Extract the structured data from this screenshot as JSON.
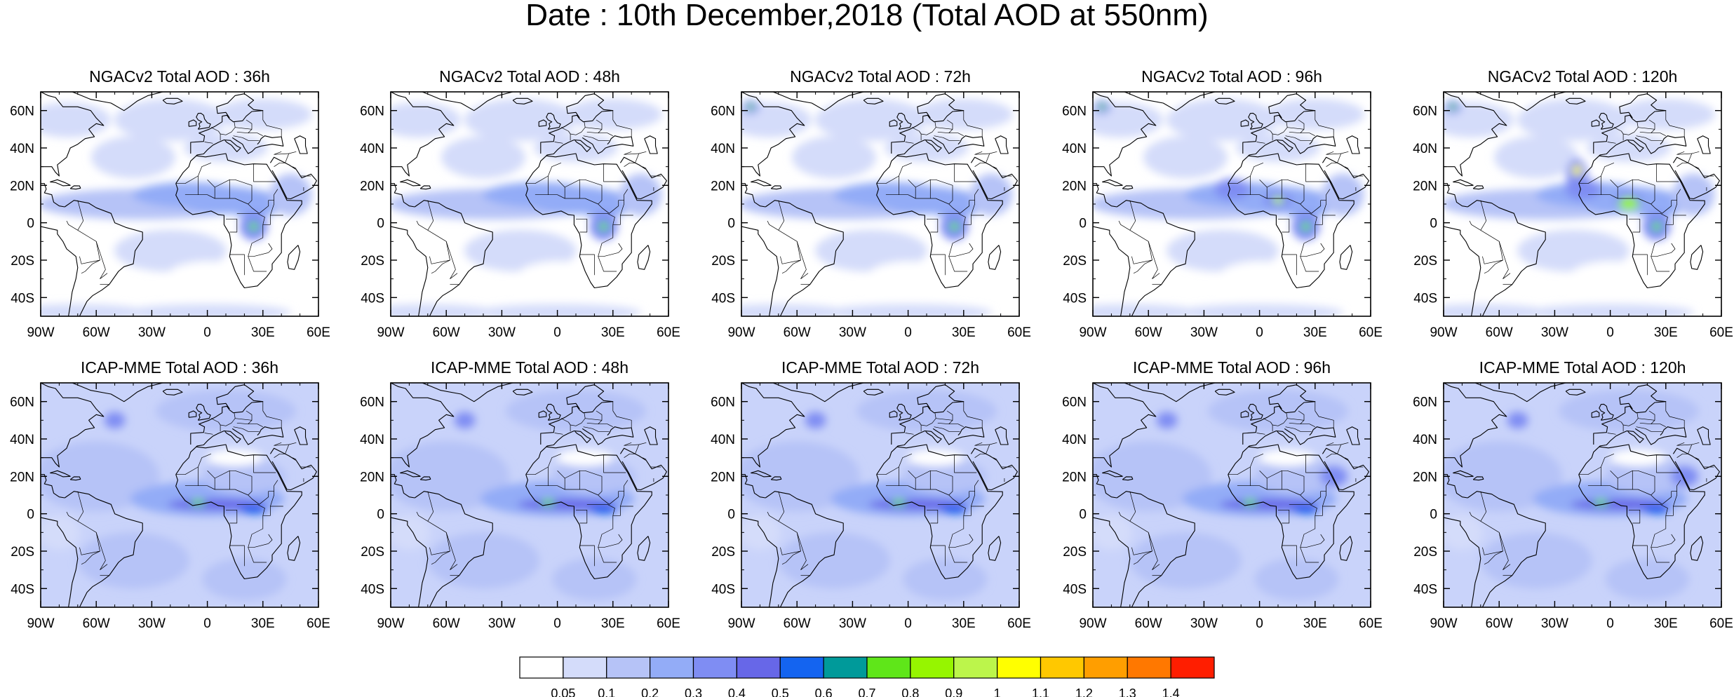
{
  "figure": {
    "title": "Date : 10th December,2018 (Total AOD at 550nm)"
  },
  "panels": [
    {
      "title": "NGACv2 Total AOD : 36h",
      "model": "NGACv2",
      "lead": "36h"
    },
    {
      "title": "NGACv2 Total AOD : 48h",
      "model": "NGACv2",
      "lead": "48h"
    },
    {
      "title": "NGACv2 Total AOD : 72h",
      "model": "NGACv2",
      "lead": "72h"
    },
    {
      "title": "NGACv2 Total AOD : 96h",
      "model": "NGACv2",
      "lead": "96h"
    },
    {
      "title": "NGACv2 Total AOD : 120h",
      "model": "NGACv2",
      "lead": "120h"
    },
    {
      "title": "ICAP-MME Total AOD : 36h",
      "model": "ICAP-MME",
      "lead": "36h"
    },
    {
      "title": "ICAP-MME Total AOD : 48h",
      "model": "ICAP-MME",
      "lead": "48h"
    },
    {
      "title": "ICAP-MME Total AOD : 72h",
      "model": "ICAP-MME",
      "lead": "72h"
    },
    {
      "title": "ICAP-MME Total AOD : 96h",
      "model": "ICAP-MME",
      "lead": "96h"
    },
    {
      "title": "ICAP-MME Total AOD : 120h",
      "model": "ICAP-MME",
      "lead": "120h"
    }
  ],
  "map_extent": {
    "lon_min": -90,
    "lon_max": 60,
    "lat_min": -50,
    "lat_max": 70
  },
  "x_ticks": [
    {
      "value": -90,
      "label": "90W"
    },
    {
      "value": -60,
      "label": "60W"
    },
    {
      "value": -30,
      "label": "30W"
    },
    {
      "value": 0,
      "label": "0"
    },
    {
      "value": 30,
      "label": "30E"
    },
    {
      "value": 60,
      "label": "60E"
    }
  ],
  "y_ticks": [
    {
      "value": 60,
      "label": "60N"
    },
    {
      "value": 40,
      "label": "40N"
    },
    {
      "value": 20,
      "label": "20N"
    },
    {
      "value": 0,
      "label": "0"
    },
    {
      "value": -20,
      "label": "20S"
    },
    {
      "value": -40,
      "label": "40S"
    }
  ],
  "colorbar": {
    "labels": [
      "0.05",
      "0.1",
      "0.2",
      "0.3",
      "0.4",
      "0.5",
      "0.6",
      "0.7",
      "0.8",
      "0.9",
      "1",
      "1.1",
      "1.2",
      "1.3",
      "1.4"
    ],
    "colors": [
      "#ffffff",
      "#d4dcfa",
      "#b6c3f7",
      "#93acf7",
      "#7f8df3",
      "#6767e8",
      "#1464f0",
      "#009a9a",
      "#5fe619",
      "#96f500",
      "#bcf54b",
      "#ffff00",
      "#ffc800",
      "#ff9e00",
      "#ff7800",
      "#ff1e00"
    ]
  },
  "icons": {
    "basemap": "coastline-map-icon"
  }
}
